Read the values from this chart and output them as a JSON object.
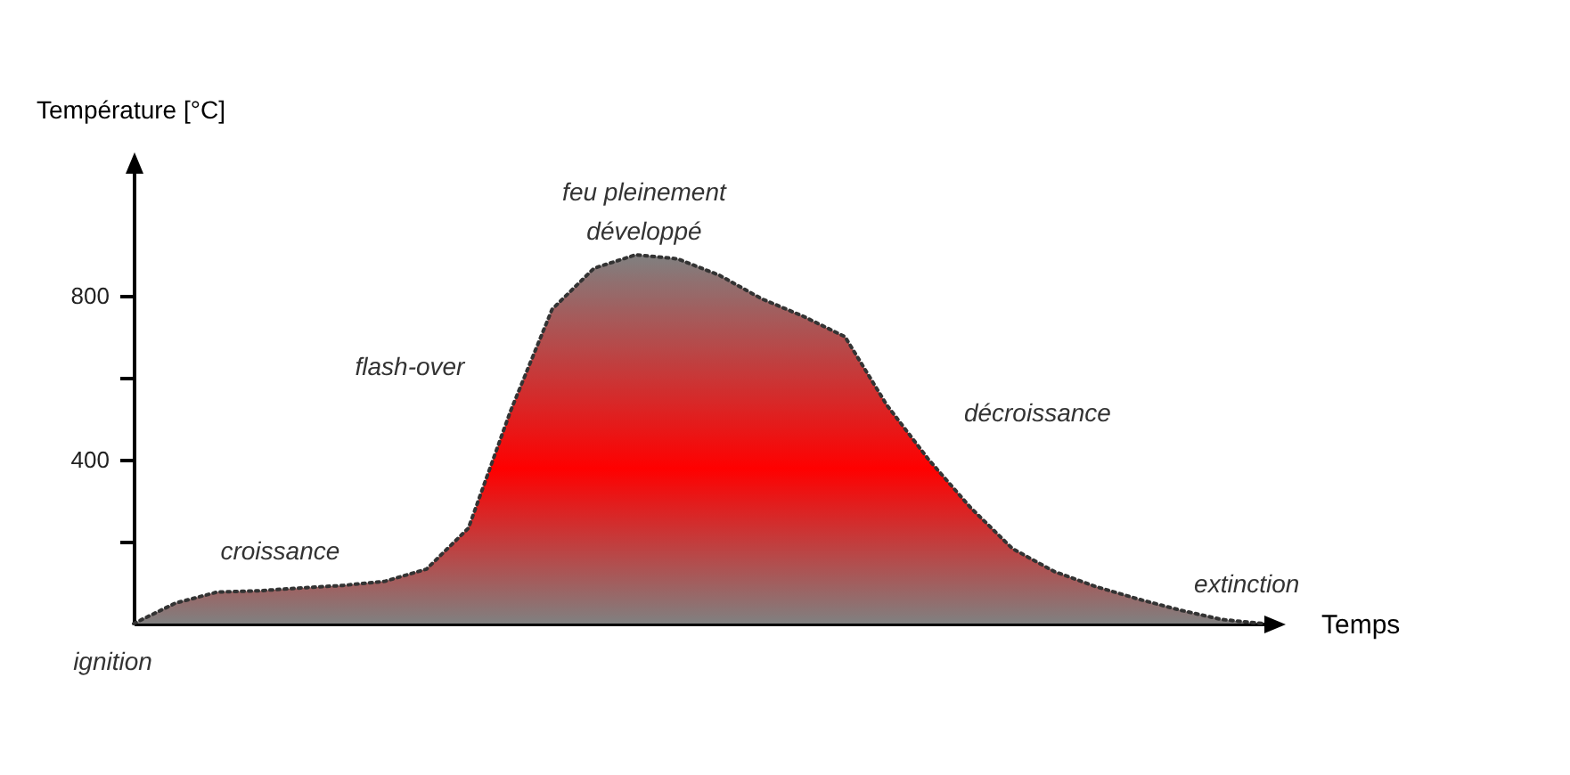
{
  "chart_data": {
    "type": "area",
    "ylabel": "Température [°C]",
    "xlabel": "Temps",
    "categories": [
      null,
      null,
      null,
      null,
      null,
      null,
      null,
      null,
      null,
      null,
      null,
      null,
      null,
      null,
      null,
      null,
      null,
      null,
      null,
      null,
      null,
      null,
      null,
      null,
      null,
      null,
      null,
      null
    ],
    "series": [
      {
        "color": "#ff0000",
        "values": [
          0,
          50,
          77,
          80,
          87,
          93,
          103,
          133,
          233,
          517,
          767,
          867,
          900,
          890,
          850,
          793,
          750,
          700,
          533,
          400,
          283,
          183,
          127,
          90,
          60,
          33,
          10,
          0
        ]
      }
    ],
    "line_style": "dotted",
    "ylim": [
      0,
      1100
    ],
    "yticks": [
      {
        "value": 200,
        "label": null
      },
      400,
      {
        "value": 600,
        "label": null
      },
      800
    ],
    "tick_labels": "y",
    "grid": false,
    "annotations": [
      "ignition",
      "croissance",
      "flash-over",
      "feu pleinement développé",
      "décroissance",
      "extinction"
    ]
  }
}
